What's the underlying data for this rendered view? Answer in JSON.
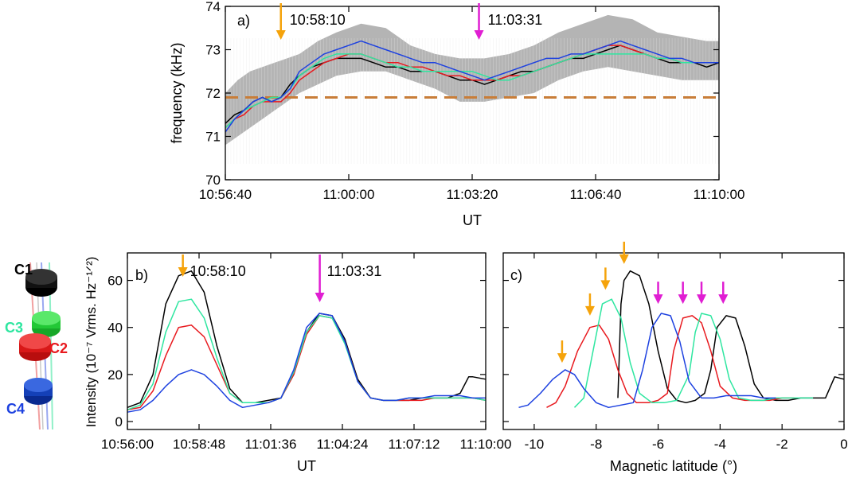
{
  "colors": {
    "C1": "#000000",
    "C2": "#e8191e",
    "C3": "#2ee6a0",
    "C4": "#1d41e0",
    "band": "#b4b4b4",
    "baseline": "#c87d38",
    "arrow_orange": "#f5a30b",
    "arrow_magenta": "#e01ed2"
  },
  "spacecraft": {
    "labels": [
      "C1",
      "C3",
      "C2",
      "C4"
    ]
  },
  "chart_data": [
    {
      "type": "line",
      "panel_label": "a)",
      "xlabel": "UT",
      "ylabel": "frequency (kHz)",
      "x_unit": "seconds from 10:56:40",
      "xlim": [
        0,
        800
      ],
      "ylim": [
        70,
        74
      ],
      "x_ticks": [
        0,
        200,
        400,
        600,
        800
      ],
      "x_tick_labels": [
        "10:56:40",
        "11:00:00",
        "11:03:20",
        "11:06:40",
        "11:10:00"
      ],
      "y_ticks": [
        70,
        71,
        72,
        73,
        74
      ],
      "y_tick_labels": [
        "70",
        "71",
        "72",
        "73",
        "74"
      ],
      "baseline_value": 71.9,
      "arrows": [
        {
          "x": 90,
          "label": "10:58:10",
          "color": "orange"
        },
        {
          "x": 411,
          "label": "11:03:31",
          "color": "magenta"
        }
      ],
      "band": {
        "x": [
          0,
          20,
          40,
          60,
          80,
          100,
          120,
          150,
          180,
          220,
          260,
          300,
          340,
          380,
          420,
          460,
          500,
          540,
          580,
          620,
          660,
          700,
          740,
          780,
          800
        ],
        "upper": [
          72.0,
          72.3,
          72.5,
          72.6,
          72.7,
          72.8,
          72.9,
          73.2,
          73.4,
          73.6,
          73.5,
          73.1,
          72.9,
          72.8,
          72.8,
          72.9,
          73.1,
          73.4,
          73.6,
          73.8,
          73.7,
          73.4,
          73.3,
          73.2,
          73.2
        ],
        "lower": [
          70.8,
          71.0,
          71.2,
          71.4,
          71.6,
          71.8,
          72.0,
          72.2,
          72.4,
          72.5,
          72.5,
          72.3,
          72.1,
          71.8,
          71.8,
          71.9,
          72.0,
          72.3,
          72.5,
          72.6,
          72.5,
          72.4,
          72.3,
          72.3,
          72.3
        ]
      },
      "series": [
        {
          "key": "C1",
          "x": [
            0,
            15,
            30,
            45,
            60,
            75,
            90,
            105,
            120,
            140,
            160,
            180,
            200,
            220,
            240,
            260,
            280,
            300,
            320,
            340,
            360,
            380,
            400,
            420,
            440,
            460,
            480,
            500,
            520,
            540,
            560,
            580,
            600,
            620,
            640,
            660,
            680,
            700,
            720,
            740,
            760,
            780,
            800
          ],
          "values": [
            71.3,
            71.5,
            71.6,
            71.8,
            71.9,
            71.8,
            71.9,
            72.2,
            72.4,
            72.6,
            72.7,
            72.8,
            72.8,
            72.8,
            72.7,
            72.6,
            72.6,
            72.5,
            72.5,
            72.5,
            72.4,
            72.3,
            72.3,
            72.2,
            72.3,
            72.4,
            72.5,
            72.5,
            72.6,
            72.7,
            72.8,
            72.8,
            72.9,
            73.0,
            73.1,
            73.0,
            72.9,
            72.8,
            72.7,
            72.7,
            72.7,
            72.6,
            72.7
          ]
        },
        {
          "key": "C2",
          "x": [
            0,
            15,
            30,
            45,
            60,
            75,
            90,
            105,
            120,
            140,
            160,
            180,
            200,
            220,
            240,
            260,
            280,
            300,
            320,
            340,
            360,
            380,
            400,
            420,
            440,
            460,
            480,
            500,
            520,
            540,
            560,
            580,
            600,
            620,
            640,
            660,
            680,
            700,
            720,
            740,
            760,
            780,
            800
          ],
          "values": [
            71.2,
            71.4,
            71.5,
            71.7,
            71.8,
            71.8,
            71.8,
            72.0,
            72.3,
            72.5,
            72.7,
            72.8,
            72.9,
            72.9,
            72.8,
            72.7,
            72.7,
            72.6,
            72.6,
            72.5,
            72.4,
            72.4,
            72.3,
            72.3,
            72.3,
            72.4,
            72.4,
            72.5,
            72.6,
            72.7,
            72.8,
            72.9,
            73.0,
            73.1,
            73.1,
            73.0,
            72.9,
            72.8,
            72.8,
            72.7,
            72.7,
            72.7,
            72.7
          ]
        },
        {
          "key": "C3",
          "x": [
            0,
            15,
            30,
            45,
            60,
            75,
            90,
            105,
            120,
            140,
            160,
            180,
            200,
            220,
            240,
            260,
            280,
            300,
            320,
            340,
            360,
            380,
            400,
            420,
            440,
            460,
            480,
            500,
            520,
            540,
            560,
            580,
            600,
            620,
            640,
            660,
            680,
            700,
            720,
            740,
            760,
            780,
            800
          ],
          "values": [
            71.2,
            71.4,
            71.6,
            71.7,
            71.8,
            71.9,
            71.9,
            72.1,
            72.4,
            72.6,
            72.8,
            72.9,
            72.9,
            72.9,
            72.8,
            72.7,
            72.6,
            72.6,
            72.5,
            72.5,
            72.5,
            72.5,
            72.5,
            72.4,
            72.3,
            72.3,
            72.4,
            72.5,
            72.6,
            72.7,
            72.8,
            72.9,
            72.9,
            72.9,
            72.9,
            72.9,
            72.9,
            72.8,
            72.8,
            72.7,
            72.7,
            72.7,
            72.7
          ]
        },
        {
          "key": "C4",
          "x": [
            0,
            15,
            30,
            45,
            60,
            75,
            90,
            105,
            120,
            140,
            160,
            180,
            200,
            220,
            240,
            260,
            280,
            300,
            320,
            340,
            360,
            380,
            400,
            420,
            440,
            460,
            480,
            500,
            520,
            540,
            560,
            580,
            600,
            620,
            640,
            660,
            680,
            700,
            720,
            740,
            760,
            780,
            800
          ],
          "values": [
            71.1,
            71.4,
            71.6,
            71.8,
            71.9,
            71.8,
            71.9,
            72.1,
            72.5,
            72.7,
            72.9,
            73.0,
            73.1,
            73.2,
            73.1,
            73.0,
            72.9,
            72.8,
            72.7,
            72.7,
            72.6,
            72.5,
            72.4,
            72.3,
            72.4,
            72.5,
            72.6,
            72.7,
            72.8,
            72.8,
            72.9,
            72.9,
            73.0,
            73.1,
            73.2,
            73.1,
            73.0,
            72.9,
            72.8,
            72.8,
            72.7,
            72.7,
            72.7
          ]
        }
      ]
    },
    {
      "type": "line",
      "panel_label": "b)",
      "xlabel": "UT",
      "ylabel": "Intensity (10⁻⁷ Vrms. Hz⁻¹ᐟ²)",
      "x_unit": "seconds from 10:56:00",
      "xlim": [
        0,
        840
      ],
      "ylim": [
        0,
        70
      ],
      "x_ticks": [
        0,
        168,
        336,
        504,
        672,
        840
      ],
      "x_tick_labels": [
        "10:56:00",
        "10:58:48",
        "11:01:36",
        "11:04:24",
        "11:07:12",
        "11:10:00"
      ],
      "y_ticks": [
        0,
        20,
        40,
        60
      ],
      "y_tick_labels": [
        "0",
        "20",
        "40",
        "60"
      ],
      "arrows": [
        {
          "x": 130,
          "label": "10:58:10",
          "color": "orange"
        },
        {
          "x": 451,
          "label": "11:03:31",
          "color": "magenta"
        }
      ],
      "series": [
        {
          "key": "C1",
          "x": [
            0,
            30,
            60,
            90,
            120,
            150,
            180,
            210,
            240,
            270,
            300,
            330,
            360,
            390,
            420,
            450,
            480,
            510,
            540,
            570,
            600,
            630,
            660,
            690,
            720,
            750,
            780,
            800,
            810,
            840
          ],
          "values": [
            6,
            8,
            20,
            50,
            62,
            64,
            55,
            32,
            14,
            8,
            8,
            9,
            10,
            20,
            38,
            46,
            45,
            35,
            18,
            10,
            9,
            9,
            9,
            10,
            10,
            10,
            12,
            19,
            19,
            18
          ]
        },
        {
          "key": "C2",
          "x": [
            0,
            30,
            60,
            90,
            120,
            150,
            180,
            210,
            240,
            270,
            300,
            330,
            360,
            390,
            420,
            450,
            480,
            510,
            540,
            570,
            600,
            630,
            660,
            690,
            720,
            750,
            780,
            810,
            840
          ],
          "values": [
            5,
            6,
            13,
            28,
            40,
            41,
            36,
            24,
            12,
            8,
            8,
            8,
            10,
            20,
            37,
            45,
            44,
            34,
            17,
            10,
            9,
            9,
            9,
            9,
            10,
            10,
            10,
            10,
            9
          ]
        },
        {
          "key": "C3",
          "x": [
            0,
            30,
            60,
            90,
            120,
            150,
            180,
            210,
            240,
            270,
            300,
            330,
            360,
            390,
            420,
            450,
            480,
            510,
            540,
            570,
            600,
            630,
            660,
            690,
            720,
            750,
            780,
            810,
            840
          ],
          "values": [
            5,
            7,
            16,
            38,
            51,
            52,
            44,
            27,
            12,
            8,
            8,
            8,
            10,
            21,
            38,
            45,
            44,
            33,
            17,
            10,
            9,
            9,
            10,
            10,
            10,
            10,
            10,
            10,
            9
          ]
        },
        {
          "key": "C4",
          "x": [
            0,
            30,
            60,
            90,
            120,
            150,
            180,
            210,
            240,
            270,
            300,
            330,
            360,
            390,
            420,
            450,
            480,
            510,
            540,
            570,
            600,
            630,
            660,
            690,
            720,
            750,
            780,
            810,
            840
          ],
          "values": [
            4,
            5,
            9,
            15,
            20,
            22,
            20,
            15,
            9,
            6,
            7,
            8,
            10,
            22,
            40,
            46,
            45,
            34,
            17,
            10,
            9,
            9,
            10,
            10,
            11,
            11,
            11,
            10,
            10
          ]
        }
      ]
    },
    {
      "type": "line",
      "panel_label": "c)",
      "xlabel": "Magnetic latitude (°)",
      "xlim": [
        -11,
        0
      ],
      "ylim": [
        0,
        70
      ],
      "x_ticks": [
        -10,
        -8,
        -6,
        -4,
        -2,
        0
      ],
      "x_tick_labels": [
        "-10",
        "-8",
        "-6",
        "-4",
        "-2",
        "0"
      ],
      "y_ticks": [
        0,
        20,
        40,
        60
      ],
      "arrows": [
        {
          "x": -9.1,
          "y": 25,
          "color": "orange"
        },
        {
          "x": -8.2,
          "y": 45,
          "color": "orange"
        },
        {
          "x": -7.7,
          "y": 56,
          "color": "orange"
        },
        {
          "x": -7.1,
          "y": 67,
          "color": "orange"
        },
        {
          "x": -6.0,
          "y": 50,
          "color": "magenta"
        },
        {
          "x": -5.2,
          "y": 50,
          "color": "magenta"
        },
        {
          "x": -4.6,
          "y": 50,
          "color": "magenta"
        },
        {
          "x": -3.9,
          "y": 50,
          "color": "magenta"
        }
      ],
      "series": [
        {
          "key": "C1",
          "x": [
            -7.3,
            -7.2,
            -7.1,
            -6.9,
            -6.6,
            -6.3,
            -6.0,
            -5.7,
            -5.4,
            -5.1,
            -4.8,
            -4.5,
            -4.3,
            -4.1,
            -3.8,
            -3.5,
            -3.2,
            -2.9,
            -2.6,
            -2.2,
            -1.8,
            -1.4,
            -1.0,
            -0.6,
            -0.3,
            0.0
          ],
          "values": [
            10,
            50,
            60,
            64,
            62,
            50,
            30,
            14,
            9,
            8,
            9,
            12,
            22,
            40,
            45,
            44,
            32,
            16,
            10,
            9,
            9,
            10,
            10,
            10,
            19,
            18
          ]
        },
        {
          "key": "C2",
          "x": [
            -9.6,
            -9.3,
            -9.0,
            -8.6,
            -8.2,
            -7.9,
            -7.6,
            -7.3,
            -7.0,
            -6.7,
            -6.3,
            -6.0,
            -5.7,
            -5.5,
            -5.2,
            -4.9,
            -4.6,
            -4.3,
            -4.0,
            -3.6,
            -3.2,
            -2.8,
            -2.4,
            -2.0,
            -1.6
          ],
          "values": [
            6,
            8,
            15,
            30,
            40,
            41,
            35,
            22,
            12,
            8,
            8,
            9,
            12,
            30,
            44,
            45,
            42,
            30,
            15,
            10,
            9,
            9,
            9,
            10,
            10
          ]
        },
        {
          "key": "C3",
          "x": [
            -8.7,
            -8.4,
            -8.1,
            -7.8,
            -7.5,
            -7.2,
            -6.9,
            -6.6,
            -6.2,
            -5.8,
            -5.4,
            -5.0,
            -4.8,
            -4.6,
            -4.3,
            -4.0,
            -3.7,
            -3.4,
            -3.0,
            -2.6,
            -2.2,
            -1.8,
            -1.4,
            -1.0
          ],
          "values": [
            6,
            10,
            30,
            50,
            52,
            44,
            25,
            12,
            8,
            8,
            9,
            20,
            38,
            46,
            45,
            35,
            18,
            10,
            9,
            9,
            10,
            10,
            10,
            10
          ]
        },
        {
          "key": "C4",
          "x": [
            -10.5,
            -10.2,
            -9.8,
            -9.4,
            -9.0,
            -8.7,
            -8.4,
            -8.0,
            -7.6,
            -7.2,
            -6.8,
            -6.5,
            -6.2,
            -5.9,
            -5.6,
            -5.3,
            -5.0,
            -4.6,
            -4.2,
            -3.8,
            -3.4,
            -3.0,
            -2.6,
            -2.2
          ],
          "values": [
            6,
            7,
            12,
            18,
            22,
            20,
            14,
            8,
            6,
            7,
            8,
            22,
            40,
            46,
            45,
            34,
            17,
            10,
            10,
            11,
            11,
            11,
            10,
            10
          ]
        }
      ]
    }
  ]
}
